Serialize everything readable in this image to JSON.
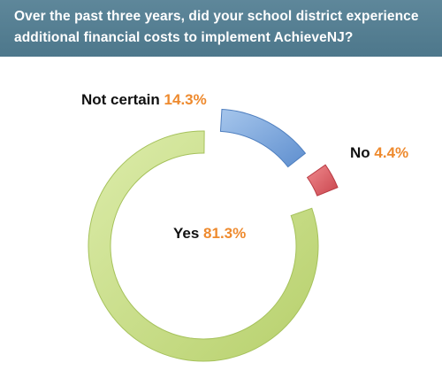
{
  "header": {
    "title": "Over the past three years, did your school district experience additional financial costs to implement AchieveNJ?"
  },
  "colors": {
    "header_bg": "#557f93",
    "percent_text": "#ee8a2e",
    "yes": "#c9df8a",
    "not_certain": "#7ea9dc",
    "no": "#e0636a"
  },
  "chart_data": {
    "type": "pie",
    "title": "Over the past three years, did your school district experience additional financial costs to implement AchieveNJ?",
    "slices": [
      {
        "label": "Yes",
        "value": 81.3,
        "display": "81.3%"
      },
      {
        "label": "Not certain",
        "value": 14.3,
        "display": "14.3%"
      },
      {
        "label": "No",
        "value": 4.4,
        "display": "4.4%"
      }
    ],
    "style": "exploded donut"
  }
}
